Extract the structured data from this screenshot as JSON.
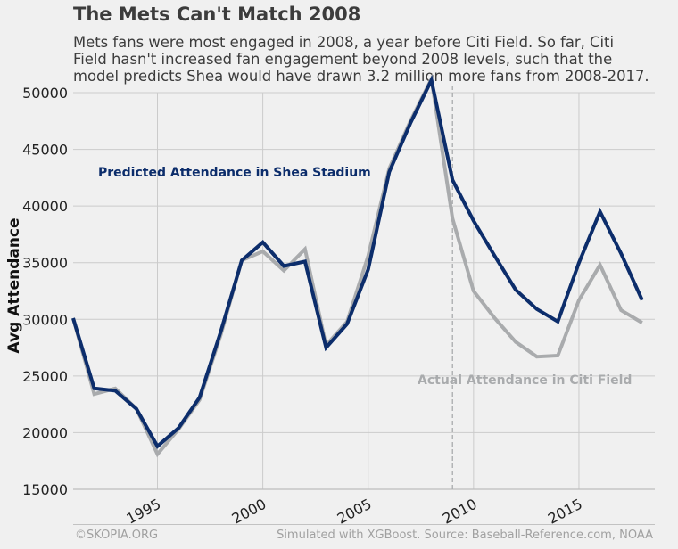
{
  "header": {
    "title": "The Mets Can't Match 2008",
    "subtitle_lines": [
      "Mets fans were most engaged in 2008, a year before Citi Field. So far, Citi",
      "Field hasn't increased fan engagement beyond 2008 levels, such that the",
      "model predicts Shea would have drawn 3.2 million more fans from 2008-2017."
    ]
  },
  "footer": {
    "left": "©SKOPIA.ORG",
    "right": "Simulated with XGBoost. Source: Baseball-Reference.com, NOAA"
  },
  "colors": {
    "predicted": "#0c2d6b",
    "actual": "#a9abad",
    "grid": "#cbcbcb",
    "vline": "#a9abad"
  },
  "chart_data": {
    "type": "line",
    "title": "The Mets Can't Match 2008",
    "xlabel": "",
    "ylabel": "Avg Attendance",
    "xlim": [
      1991,
      2018.6
    ],
    "ylim": [
      15000,
      50000
    ],
    "x_ticks": [
      1995,
      2000,
      2005,
      2010,
      2015
    ],
    "y_ticks": [
      15000,
      20000,
      25000,
      30000,
      35000,
      40000,
      45000,
      50000
    ],
    "grid": true,
    "vline": {
      "x": 2009
    },
    "x": [
      1991,
      1992,
      1993,
      1994,
      1995,
      1996,
      1997,
      1998,
      1999,
      2000,
      2001,
      2002,
      2003,
      2004,
      2005,
      2006,
      2007,
      2008,
      2009,
      2010,
      2011,
      2012,
      2013,
      2014,
      2015,
      2016,
      2017,
      2018
    ],
    "series": [
      {
        "name": "Actual Attendance in Citi Field",
        "values": [
          30100,
          23400,
          23900,
          22100,
          18100,
          20300,
          22900,
          28600,
          35200,
          36000,
          34300,
          36200,
          27700,
          29800,
          35600,
          43300,
          47500,
          51200,
          38900,
          32500,
          30100,
          28000,
          26700,
          26800,
          31700,
          34800,
          30800,
          29700
        ]
      },
      {
        "name": "Predicted Attendance in Shea Stadium",
        "values": [
          30100,
          23900,
          23700,
          22100,
          18800,
          20400,
          23100,
          28900,
          35200,
          36800,
          34700,
          35100,
          27500,
          29600,
          34400,
          43000,
          47300,
          51100,
          42300,
          38700,
          35600,
          32600,
          30900,
          29800,
          35000,
          39500,
          35800,
          31700
        ]
      }
    ],
    "annotations": [
      {
        "text": "Predicted Attendance in Shea Stadium",
        "series": "Predicted Attendance in Shea Stadium"
      },
      {
        "text": "Actual Attendance in Citi Field",
        "series": "Actual Attendance in Citi Field"
      }
    ]
  }
}
